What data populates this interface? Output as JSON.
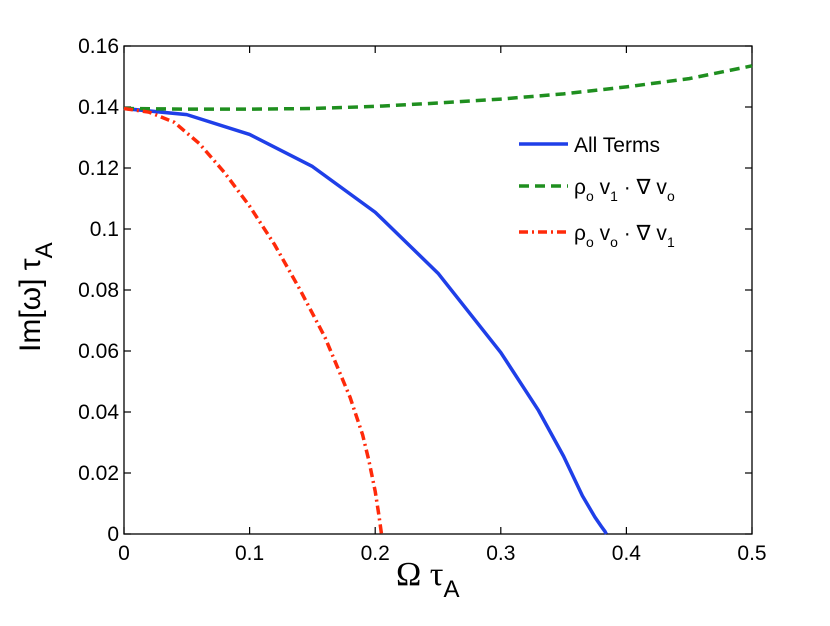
{
  "chart_data": {
    "type": "line",
    "xlabel": {
      "main": "Ω τ",
      "sub": "A"
    },
    "ylabel": {
      "main": "Im[ω] τ",
      "sub": "A"
    },
    "xlim": [
      0,
      0.5
    ],
    "ylim": [
      0,
      0.16
    ],
    "xticks": [
      0,
      0.1,
      0.2,
      0.3,
      0.4,
      0.5
    ],
    "xtick_labels": [
      "0",
      "0.1",
      "0.2",
      "0.3",
      "0.4",
      "0.5"
    ],
    "yticks": [
      0,
      0.02,
      0.04,
      0.06,
      0.08,
      0.1,
      0.12,
      0.14,
      0.16
    ],
    "ytick_labels": [
      "0",
      "0.02",
      "0.04",
      "0.06",
      "0.08",
      "0.1",
      "0.12",
      "0.14",
      "0.16"
    ],
    "grid": false,
    "legend_position": "upper-right",
    "series": [
      {
        "name": "All Terms",
        "color": "#1f3fe8",
        "style": "solid",
        "x": [
          0,
          0.05,
          0.1,
          0.15,
          0.2,
          0.25,
          0.3,
          0.33,
          0.35,
          0.365,
          0.375,
          0.38,
          0.383,
          0.384
        ],
        "y": [
          0.1395,
          0.1375,
          0.131,
          0.1205,
          0.1055,
          0.0855,
          0.0595,
          0.0405,
          0.0255,
          0.0125,
          0.0055,
          0.0025,
          0.0008,
          0
        ]
      },
      {
        "name": "ρ_o v_1 · ∇ v_o",
        "color": "#1f8f1f",
        "style": "dashed",
        "x": [
          0,
          0.05,
          0.1,
          0.15,
          0.2,
          0.25,
          0.3,
          0.35,
          0.4,
          0.45,
          0.5
        ],
        "y": [
          0.1395,
          0.1393,
          0.1393,
          0.1395,
          0.1402,
          0.1413,
          0.1426,
          0.1443,
          0.1466,
          0.1493,
          0.1535
        ]
      },
      {
        "name": "ρ_o v_o · ∇ v_1",
        "color": "#ff2a0a",
        "style": "dashdot",
        "x": [
          0,
          0.02,
          0.04,
          0.06,
          0.08,
          0.1,
          0.12,
          0.14,
          0.16,
          0.18,
          0.19,
          0.195,
          0.2,
          0.203,
          0.205
        ],
        "y": [
          0.1395,
          0.1383,
          0.135,
          0.128,
          0.1185,
          0.1075,
          0.0948,
          0.0802,
          0.0645,
          0.0448,
          0.0325,
          0.024,
          0.014,
          0.006,
          0
        ]
      }
    ],
    "legend_labels": [
      {
        "main": "All Terms"
      },
      {
        "rho": "ρ",
        "rho_sub": "o",
        "v1": " v",
        "v1_sub": "1",
        "op": " · ∇ v",
        "v2_sub": "o"
      },
      {
        "rho": "ρ",
        "rho_sub": "o",
        "v1": " v",
        "v1_sub": "o",
        "op": " · ∇ v",
        "v2_sub": "1"
      }
    ]
  }
}
